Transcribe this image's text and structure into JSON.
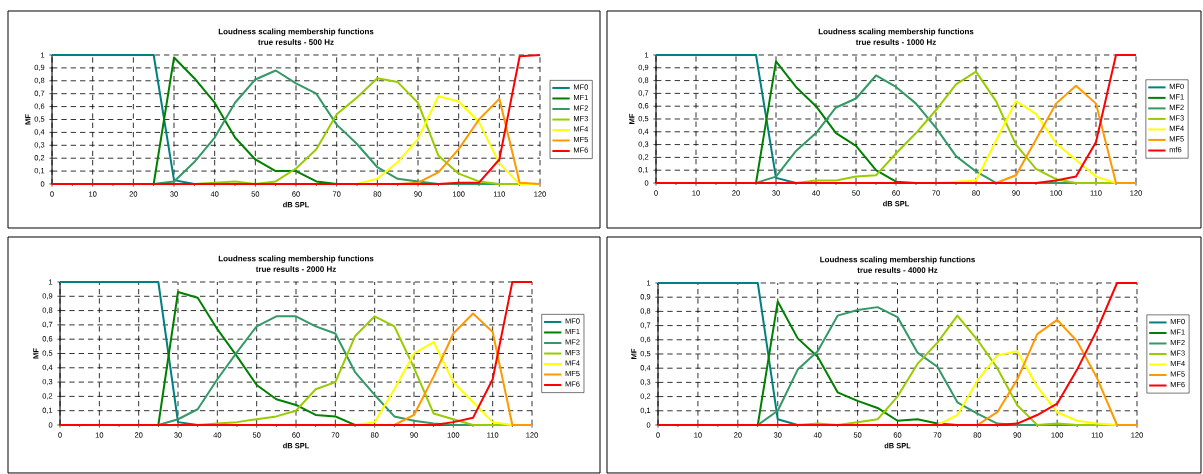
{
  "chart_data": [
    {
      "type": "line",
      "title": "Loudness scaling membership functions",
      "subtitle": "true results -  500 Hz",
      "xlabel": "dB SPL",
      "ylabel": "MF",
      "x": [
        0,
        5,
        10,
        15,
        20,
        25,
        30,
        35,
        40,
        45,
        50,
        55,
        60,
        65,
        70,
        75,
        80,
        85,
        90,
        95,
        100,
        105,
        110,
        115,
        120
      ],
      "xlim": [
        0,
        120
      ],
      "xticks": [
        0,
        10,
        20,
        30,
        40,
        50,
        60,
        70,
        80,
        90,
        100,
        110,
        120
      ],
      "ylim": [
        0,
        1
      ],
      "yticks": [
        0,
        {
          "value": 0.1,
          "label": "0,1"
        },
        {
          "value": 0.2,
          "label": "0,2"
        },
        {
          "value": 0.3,
          "label": "0,3"
        },
        {
          "value": 0.4,
          "label": "0,4"
        },
        {
          "value": 0.5,
          "label": "0,5"
        },
        {
          "value": 0.6,
          "label": "0,6"
        },
        {
          "value": 0.7,
          "label": "0,7"
        },
        {
          "value": 0.8,
          "label": "0,8"
        },
        {
          "value": 0.9,
          "label": "0,9"
        },
        1
      ],
      "grid": true,
      "legend": "right",
      "line_style": "solid",
      "series": [
        {
          "name": "MF0",
          "color": "#008080",
          "values": [
            1,
            1,
            1,
            1,
            1,
            1,
            0.03,
            0,
            null,
            null,
            null,
            null,
            null,
            null,
            null,
            null,
            null,
            null,
            null,
            null,
            null,
            null,
            null,
            null,
            null
          ]
        },
        {
          "name": "MF1",
          "color": "#008000",
          "values": [
            null,
            null,
            null,
            null,
            null,
            0,
            0.98,
            0.82,
            0.63,
            0.36,
            0.19,
            0.1,
            0.1,
            0.02,
            0,
            null,
            null,
            null,
            null,
            null,
            null,
            null,
            null,
            null,
            null
          ]
        },
        {
          "name": "MF2",
          "color": "#339966",
          "values": [
            null,
            null,
            null,
            null,
            null,
            0,
            0.02,
            0.17,
            0.36,
            0.63,
            0.81,
            0.88,
            0.78,
            0.7,
            0.46,
            0.31,
            0.13,
            0.04,
            0.02,
            0,
            0,
            0,
            0,
            null,
            null
          ]
        },
        {
          "name": "MF3",
          "color": "#99cc00",
          "values": [
            null,
            null,
            null,
            null,
            null,
            null,
            null,
            0,
            0.01,
            0.02,
            0,
            0.02,
            0.12,
            0.27,
            0.54,
            0.67,
            0.82,
            0.79,
            0.63,
            0.22,
            0.08,
            0.02,
            0,
            0,
            null
          ]
        },
        {
          "name": "MF4",
          "color": "#ffff00",
          "values": [
            null,
            null,
            null,
            null,
            null,
            null,
            null,
            null,
            null,
            null,
            null,
            null,
            null,
            null,
            null,
            0,
            0.04,
            0.17,
            0.35,
            0.68,
            0.64,
            0.48,
            0.16,
            0,
            0
          ]
        },
        {
          "name": "MF5",
          "color": "#ff9900",
          "values": [
            null,
            null,
            null,
            null,
            null,
            null,
            null,
            null,
            null,
            null,
            null,
            null,
            null,
            null,
            null,
            null,
            null,
            0,
            0.01,
            0.09,
            0.27,
            0.5,
            0.66,
            0.01,
            0
          ]
        },
        {
          "name": "MF6",
          "color": "#ff0000",
          "values": [
            0,
            0,
            0,
            0,
            0,
            0,
            0,
            0,
            0,
            0,
            0,
            0,
            0,
            0,
            0,
            0,
            0,
            0,
            0,
            0,
            0.01,
            0.01,
            0.19,
            0.99,
            1
          ]
        }
      ]
    },
    {
      "type": "line",
      "title": "Loudness scaling membership functions",
      "subtitle": "true results - 1000 Hz",
      "xlabel": "dB SPL",
      "ylabel": "MF",
      "x": [
        0,
        5,
        10,
        15,
        20,
        25,
        30,
        35,
        40,
        45,
        50,
        55,
        60,
        65,
        70,
        75,
        80,
        85,
        90,
        95,
        100,
        105,
        110,
        115,
        120
      ],
      "xlim": [
        0,
        120
      ],
      "xticks": [
        0,
        10,
        20,
        30,
        40,
        50,
        60,
        70,
        80,
        90,
        100,
        110,
        120
      ],
      "ylim": [
        0,
        1
      ],
      "yticks": [
        0,
        {
          "value": 0.1,
          "label": "0,1"
        },
        {
          "value": 0.2,
          "label": "0,2"
        },
        {
          "value": 0.3,
          "label": "0,3"
        },
        {
          "value": 0.4,
          "label": "0,4"
        },
        {
          "value": 0.5,
          "label": "0,5"
        },
        {
          "value": 0.6,
          "label": "0,6"
        },
        {
          "value": 0.7,
          "label": "0,7"
        },
        {
          "value": 0.8,
          "label": "0,8"
        },
        {
          "value": 0.9,
          "label": "0,9"
        },
        1
      ],
      "grid": true,
      "legend": "right",
      "line_style": "solid",
      "series": [
        {
          "name": "MF0",
          "color": "#008080",
          "values": [
            1,
            1,
            1,
            1,
            1,
            1,
            0.04,
            0,
            null,
            null,
            null,
            null,
            null,
            null,
            null,
            null,
            null,
            null,
            null,
            null,
            null,
            null,
            null,
            null,
            null
          ]
        },
        {
          "name": "MF1",
          "color": "#008000",
          "values": [
            null,
            null,
            null,
            null,
            null,
            0,
            0.95,
            0.75,
            0.6,
            0.39,
            0.29,
            0.1,
            0.01,
            0,
            null,
            null,
            null,
            null,
            null,
            null,
            null,
            null,
            null,
            null,
            null
          ]
        },
        {
          "name": "MF2",
          "color": "#339966",
          "values": [
            null,
            null,
            null,
            null,
            null,
            0,
            0.05,
            0.25,
            0.39,
            0.59,
            0.66,
            0.84,
            0.75,
            0.62,
            0.43,
            0.21,
            0.09,
            0,
            null,
            0,
            0,
            0,
            null,
            null,
            null
          ]
        },
        {
          "name": "MF3",
          "color": "#99cc00",
          "values": [
            null,
            null,
            null,
            null,
            null,
            null,
            null,
            0,
            0.02,
            0.02,
            0.05,
            0.06,
            0.23,
            0.39,
            0.57,
            0.77,
            0.87,
            0.64,
            0.3,
            0.11,
            0.03,
            0,
            0,
            0,
            null
          ]
        },
        {
          "name": "MF4",
          "color": "#ffff00",
          "values": [
            null,
            null,
            null,
            null,
            null,
            null,
            null,
            null,
            null,
            null,
            null,
            null,
            null,
            null,
            0,
            0.01,
            0.02,
            0.33,
            0.64,
            0.54,
            0.31,
            0.18,
            0.05,
            0,
            null
          ]
        },
        {
          "name": "MF5",
          "color": "#ff9900",
          "values": [
            null,
            null,
            null,
            null,
            null,
            null,
            null,
            null,
            null,
            null,
            null,
            null,
            null,
            null,
            null,
            null,
            null,
            0,
            0.06,
            0.34,
            0.62,
            0.76,
            0.62,
            0,
            0
          ]
        },
        {
          "name": "mf6",
          "color": "#ff0000",
          "values": [
            0,
            0,
            0,
            0,
            0,
            0,
            0,
            0,
            0,
            0,
            0,
            0,
            0,
            0,
            0,
            0,
            0,
            0,
            0,
            0,
            0.02,
            0.05,
            0.32,
            1,
            1
          ]
        }
      ]
    },
    {
      "type": "line",
      "title": "Loudness scaling membership functions",
      "subtitle": "true results - 2000 Hz",
      "xlabel": "dB SPL",
      "ylabel": "MF",
      "x": [
        0,
        5,
        10,
        15,
        20,
        25,
        30,
        35,
        40,
        45,
        50,
        55,
        60,
        65,
        70,
        75,
        80,
        85,
        90,
        95,
        100,
        105,
        110,
        115,
        120
      ],
      "xlim": [
        0,
        120
      ],
      "xticks": [
        0,
        10,
        20,
        30,
        40,
        50,
        60,
        70,
        80,
        90,
        100,
        110,
        120
      ],
      "ylim": [
        0,
        1
      ],
      "yticks": [
        0,
        {
          "value": 0.1,
          "label": "0,1"
        },
        {
          "value": 0.2,
          "label": "0,2"
        },
        {
          "value": 0.3,
          "label": "0,3"
        },
        {
          "value": 0.4,
          "label": "0,4"
        },
        {
          "value": 0.5,
          "label": "0,5"
        },
        {
          "value": 0.6,
          "label": "0,6"
        },
        {
          "value": 0.7,
          "label": "0,7"
        },
        {
          "value": 0.8,
          "label": "0,8"
        },
        {
          "value": 0.9,
          "label": "0,9"
        },
        1
      ],
      "grid": true,
      "legend": "right",
      "line_style": "solid",
      "series": [
        {
          "name": "MF0",
          "color": "#008080",
          "values": [
            1,
            1,
            1,
            1,
            1,
            1,
            0.02,
            0,
            null,
            null,
            null,
            null,
            null,
            null,
            null,
            null,
            null,
            null,
            null,
            null,
            null,
            null,
            null,
            null,
            null
          ]
        },
        {
          "name": "MF1",
          "color": "#008000",
          "values": [
            null,
            null,
            null,
            null,
            null,
            0,
            0.93,
            0.89,
            0.67,
            0.48,
            0.28,
            0.18,
            0.14,
            0.07,
            0.06,
            0,
            null,
            null,
            null,
            0,
            0,
            null,
            null,
            null,
            null
          ]
        },
        {
          "name": "MF2",
          "color": "#339966",
          "values": [
            null,
            null,
            null,
            null,
            null,
            0,
            0.04,
            0.11,
            0.32,
            0.51,
            0.69,
            0.76,
            0.76,
            0.69,
            0.64,
            0.37,
            0.21,
            0.06,
            0.03,
            0.01,
            0,
            0,
            null,
            null,
            null
          ]
        },
        {
          "name": "MF3",
          "color": "#99cc00",
          "values": [
            null,
            null,
            null,
            null,
            null,
            null,
            null,
            0,
            0.01,
            0.02,
            0.04,
            0.06,
            0.1,
            0.25,
            0.3,
            0.62,
            0.76,
            0.69,
            0.4,
            0.08,
            0.04,
            0,
            0,
            0,
            null
          ]
        },
        {
          "name": "MF4",
          "color": "#ffff00",
          "values": [
            null,
            null,
            null,
            null,
            null,
            null,
            null,
            null,
            null,
            null,
            null,
            null,
            null,
            null,
            null,
            0,
            0.02,
            0.25,
            0.5,
            0.58,
            0.3,
            0.16,
            0.02,
            0,
            null
          ]
        },
        {
          "name": "MF5",
          "color": "#ff9900",
          "values": [
            null,
            null,
            null,
            null,
            null,
            null,
            null,
            null,
            null,
            null,
            null,
            null,
            null,
            null,
            null,
            null,
            null,
            0,
            0.07,
            0.34,
            0.64,
            0.78,
            0.65,
            0,
            0
          ]
        },
        {
          "name": "MF6",
          "color": "#ff0000",
          "values": [
            0,
            0,
            0,
            0,
            0,
            0,
            0,
            0,
            0,
            0,
            0,
            0,
            0,
            0,
            0,
            0,
            0,
            0,
            0,
            0,
            0.02,
            0.05,
            0.32,
            1,
            1
          ]
        }
      ]
    },
    {
      "type": "line",
      "title": "Loudness scaling membership functions",
      "subtitle": "true results -  4000 Hz",
      "xlabel": "dB SPL",
      "ylabel": "MF",
      "x": [
        0,
        5,
        10,
        15,
        20,
        25,
        30,
        35,
        40,
        45,
        50,
        55,
        60,
        65,
        70,
        75,
        80,
        85,
        90,
        95,
        100,
        105,
        110,
        115,
        120
      ],
      "xlim": [
        0,
        120
      ],
      "xticks": [
        0,
        10,
        20,
        30,
        40,
        50,
        60,
        70,
        80,
        90,
        100,
        110,
        120
      ],
      "ylim": [
        0,
        1
      ],
      "yticks": [
        0,
        {
          "value": 0.1,
          "label": "0,1"
        },
        {
          "value": 0.2,
          "label": "0,2"
        },
        {
          "value": 0.3,
          "label": "0,3"
        },
        {
          "value": 0.4,
          "label": "0,4"
        },
        {
          "value": 0.5,
          "label": "0,5"
        },
        {
          "value": 0.6,
          "label": "0,6"
        },
        {
          "value": 0.7,
          "label": "0,7"
        },
        {
          "value": 0.8,
          "label": "0,8"
        },
        {
          "value": 0.9,
          "label": "0,9"
        },
        1
      ],
      "grid": true,
      "legend": "right",
      "line_style": "solid",
      "series": [
        {
          "name": "MF0",
          "color": "#008080",
          "values": [
            1,
            1,
            1,
            1,
            1,
            1,
            0.04,
            0,
            null,
            null,
            null,
            null,
            null,
            null,
            null,
            null,
            null,
            null,
            null,
            null,
            null,
            null,
            null,
            null,
            null
          ]
        },
        {
          "name": "MF1",
          "color": "#008000",
          "values": [
            null,
            null,
            null,
            null,
            null,
            0,
            0.87,
            0.61,
            0.48,
            0.23,
            0.17,
            0.12,
            0.03,
            0.04,
            0.01,
            0,
            null,
            0,
            0,
            null,
            null,
            null,
            null,
            null,
            null
          ]
        },
        {
          "name": "MF2",
          "color": "#339966",
          "values": [
            null,
            null,
            null,
            null,
            null,
            0,
            0.1,
            0.39,
            0.52,
            0.77,
            0.81,
            0.83,
            0.76,
            0.51,
            0.41,
            0.16,
            0.08,
            0.01,
            0,
            0,
            0,
            0,
            null,
            null,
            null
          ]
        },
        {
          "name": "MF3",
          "color": "#99cc00",
          "values": [
            null,
            null,
            null,
            null,
            null,
            null,
            null,
            0,
            0.01,
            0,
            0.02,
            0.04,
            0.2,
            0.43,
            0.58,
            0.77,
            0.6,
            0.4,
            0.14,
            0,
            0.01,
            0,
            0,
            0,
            null
          ]
        },
        {
          "name": "MF4",
          "color": "#ffff00",
          "values": [
            null,
            null,
            null,
            null,
            null,
            null,
            null,
            null,
            null,
            null,
            null,
            null,
            null,
            null,
            0,
            0.07,
            0.31,
            0.49,
            0.52,
            0.27,
            0.09,
            0.03,
            0.01,
            0,
            null
          ]
        },
        {
          "name": "MF5",
          "color": "#ff9900",
          "values": [
            null,
            null,
            null,
            null,
            null,
            null,
            null,
            null,
            null,
            null,
            null,
            null,
            null,
            null,
            null,
            null,
            0,
            0.09,
            0.32,
            0.64,
            0.74,
            0.59,
            0.33,
            0,
            0
          ]
        },
        {
          "name": "MF6",
          "color": "#ff0000",
          "values": [
            0,
            0,
            0,
            0,
            0,
            0,
            0,
            0,
            0,
            0,
            0,
            0,
            0,
            0,
            0,
            0,
            0,
            0,
            0.01,
            0.07,
            0.15,
            0.39,
            0.67,
            1,
            1
          ]
        }
      ]
    }
  ]
}
